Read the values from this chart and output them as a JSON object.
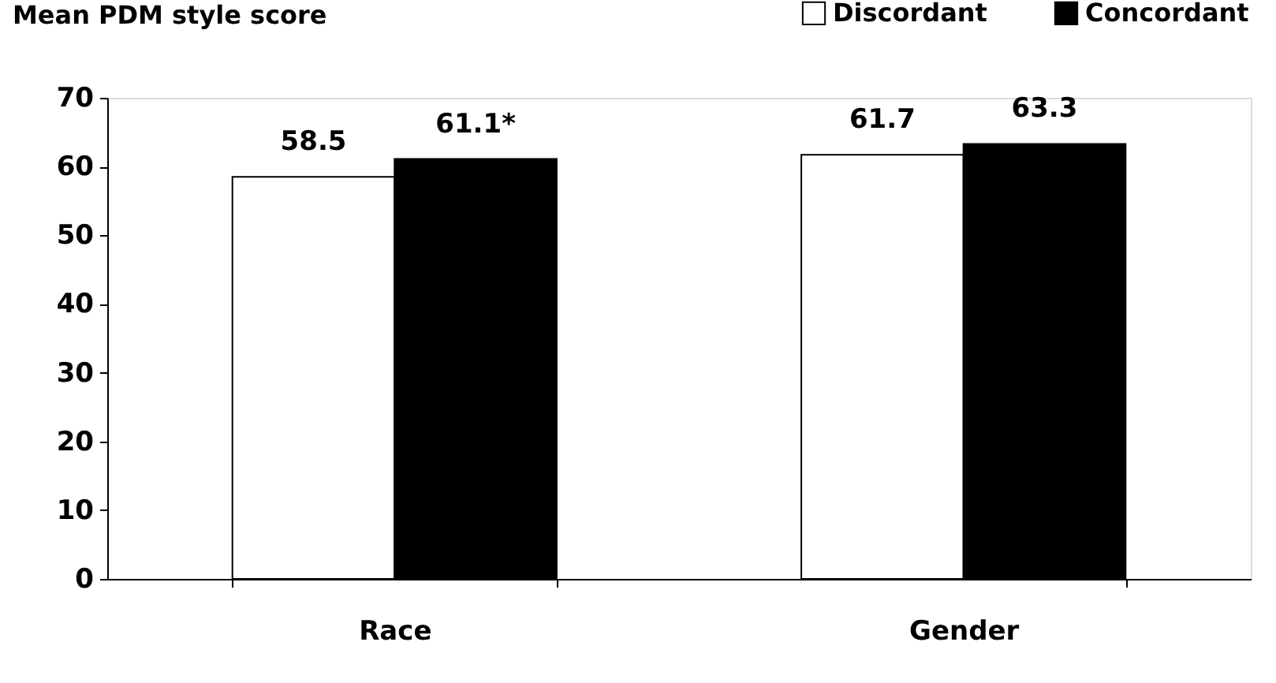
{
  "chart_data": {
    "type": "bar",
    "title": "Mean PDM style score",
    "categories": [
      "Race",
      "Gender"
    ],
    "series": [
      {
        "name": "Discordant",
        "color": "#ffffff",
        "values": [
          58.5,
          61.7
        ],
        "value_labels": [
          "58.5",
          "61.7"
        ]
      },
      {
        "name": "Concordant",
        "color": "#000000",
        "values": [
          61.1,
          63.3
        ],
        "value_labels": [
          "61.1*",
          "63.3"
        ]
      }
    ],
    "ylim": [
      0,
      70
    ],
    "yticks": [
      0,
      10,
      20,
      30,
      40,
      50,
      60,
      70
    ],
    "grid": false,
    "legend": "top right"
  }
}
